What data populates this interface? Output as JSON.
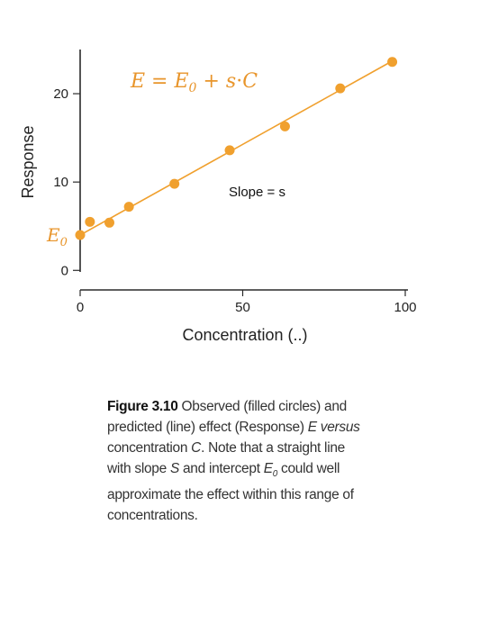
{
  "chart_data": {
    "type": "scatter",
    "xlabel": "Concentration (..)",
    "ylabel": "Response",
    "xlim": [
      0,
      100
    ],
    "ylim": [
      -1.5,
      25
    ],
    "xticks": [
      0,
      50,
      100
    ],
    "yticks": [
      0,
      10,
      20
    ],
    "xtick_labels": [
      "0",
      "50",
      "100"
    ],
    "ytick_labels": [
      "0",
      "10",
      "20"
    ],
    "grid": false,
    "series": [
      {
        "x": [
          0,
          3,
          9,
          15,
          29,
          46,
          63,
          80,
          96
        ],
        "y": [
          4.0,
          5.5,
          5.4,
          7.2,
          9.8,
          13.6,
          16.3,
          20.6,
          23.6
        ],
        "color": "#f0a02e",
        "marker": "filled-circle"
      }
    ],
    "fit_line": {
      "type": "line",
      "x": [
        0,
        96
      ],
      "y": [
        4.0,
        23.7
      ],
      "color": "#f0a02e"
    },
    "annotations": {
      "equation": {
        "E": "E",
        "eq": " = ",
        "E0": "E",
        "E0_sub": "0",
        "plus": " + ",
        "s": "s",
        "dot": "·",
        "C": "C"
      },
      "slope_label": "Slope = s",
      "intercept_label": {
        "E": "E",
        "sub": "0"
      }
    }
  },
  "caption": {
    "label": "Figure 3.10",
    "t1": " Observed (filled circles) and predicted (line) effect (Response) ",
    "E": "E",
    "versus": " versus",
    "t2": " concentration ",
    "C": "C",
    "t3": ". Note that a straight line with slope ",
    "S": "S",
    "t4": " and intercept ",
    "E0": "E",
    "E0_sub": "0",
    "t5": " could well approximate the effect within this range of concentrations."
  }
}
